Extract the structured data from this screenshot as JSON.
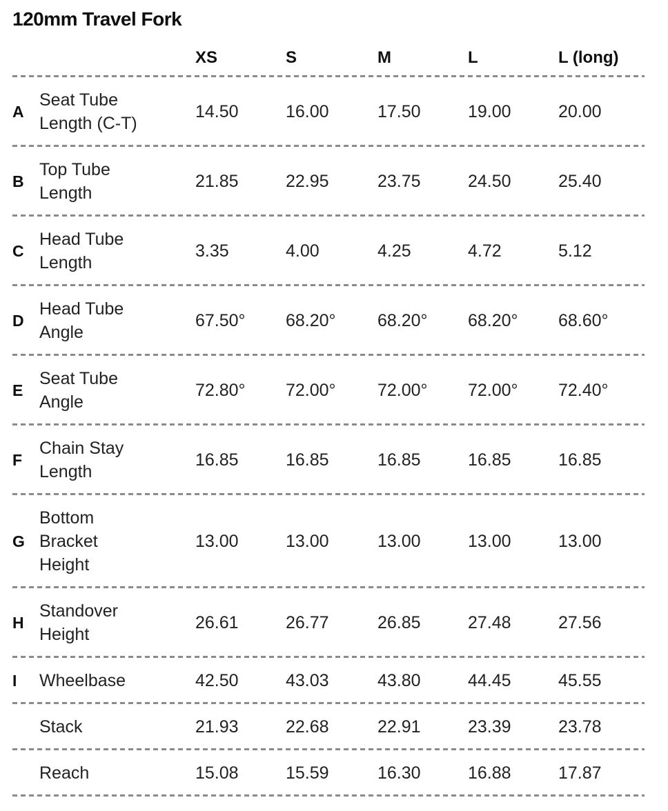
{
  "title": "120mm Travel Fork",
  "table": {
    "columns": [
      "XS",
      "S",
      "M",
      "L",
      "L (long)"
    ],
    "rows": [
      {
        "letter": "A",
        "label": "Seat Tube\nLength (C-T)",
        "values": [
          "14.50",
          "16.00",
          "17.50",
          "19.00",
          "20.00"
        ]
      },
      {
        "letter": "B",
        "label": "Top Tube\nLength",
        "values": [
          "21.85",
          "22.95",
          "23.75",
          "24.50",
          "25.40"
        ]
      },
      {
        "letter": "C",
        "label": "Head Tube\nLength",
        "values": [
          "3.35",
          "4.00",
          "4.25",
          "4.72",
          "5.12"
        ]
      },
      {
        "letter": "D",
        "label": "Head Tube\nAngle",
        "values": [
          "67.50°",
          "68.20°",
          "68.20°",
          "68.20°",
          "68.60°"
        ]
      },
      {
        "letter": "E",
        "label": "Seat Tube\nAngle",
        "values": [
          "72.80°",
          "72.00°",
          "72.00°",
          "72.00°",
          "72.40°"
        ]
      },
      {
        "letter": "F",
        "label": "Chain Stay\nLength",
        "values": [
          "16.85",
          "16.85",
          "16.85",
          "16.85",
          "16.85"
        ]
      },
      {
        "letter": "G",
        "label": "Bottom\nBracket\nHeight",
        "values": [
          "13.00",
          "13.00",
          "13.00",
          "13.00",
          "13.00"
        ]
      },
      {
        "letter": "H",
        "label": "Standover\nHeight",
        "values": [
          "26.61",
          "26.77",
          "26.85",
          "27.48",
          "27.56"
        ]
      },
      {
        "letter": "I",
        "label": "Wheelbase",
        "values": [
          "42.50",
          "43.03",
          "43.80",
          "44.45",
          "45.55"
        ]
      },
      {
        "letter": "",
        "label": "Stack",
        "values": [
          "21.93",
          "22.68",
          "22.91",
          "23.39",
          "23.78"
        ]
      },
      {
        "letter": "",
        "label": "Reach",
        "values": [
          "15.08",
          "15.59",
          "16.30",
          "16.88",
          "17.87"
        ]
      }
    ]
  },
  "colors": {
    "text": "#1d1d1d",
    "heading": "#0f0f0f",
    "divider": "#8a8a8a",
    "background": "#ffffff"
  },
  "chart_data": {
    "type": "table",
    "title": "120mm Travel Fork",
    "columns": [
      "XS",
      "S",
      "M",
      "L",
      "L (long)"
    ],
    "rows": [
      {
        "id": "A",
        "name": "Seat Tube Length (C-T)",
        "values": [
          14.5,
          16.0,
          17.5,
          19.0,
          20.0
        ]
      },
      {
        "id": "B",
        "name": "Top Tube Length",
        "values": [
          21.85,
          22.95,
          23.75,
          24.5,
          25.4
        ]
      },
      {
        "id": "C",
        "name": "Head Tube Length",
        "values": [
          3.35,
          4.0,
          4.25,
          4.72,
          5.12
        ]
      },
      {
        "id": "D",
        "name": "Head Tube Angle",
        "values": [
          67.5,
          68.2,
          68.2,
          68.2,
          68.6
        ],
        "unit": "degrees"
      },
      {
        "id": "E",
        "name": "Seat Tube Angle",
        "values": [
          72.8,
          72.0,
          72.0,
          72.0,
          72.4
        ],
        "unit": "degrees"
      },
      {
        "id": "F",
        "name": "Chain Stay Length",
        "values": [
          16.85,
          16.85,
          16.85,
          16.85,
          16.85
        ]
      },
      {
        "id": "G",
        "name": "Bottom Bracket Height",
        "values": [
          13.0,
          13.0,
          13.0,
          13.0,
          13.0
        ]
      },
      {
        "id": "H",
        "name": "Standover Height",
        "values": [
          26.61,
          26.77,
          26.85,
          27.48,
          27.56
        ]
      },
      {
        "id": "I",
        "name": "Wheelbase",
        "values": [
          42.5,
          43.03,
          43.8,
          44.45,
          45.55
        ]
      },
      {
        "id": "",
        "name": "Stack",
        "values": [
          21.93,
          22.68,
          22.91,
          23.39,
          23.78
        ]
      },
      {
        "id": "",
        "name": "Reach",
        "values": [
          15.08,
          15.59,
          16.3,
          16.88,
          17.87
        ]
      }
    ]
  }
}
